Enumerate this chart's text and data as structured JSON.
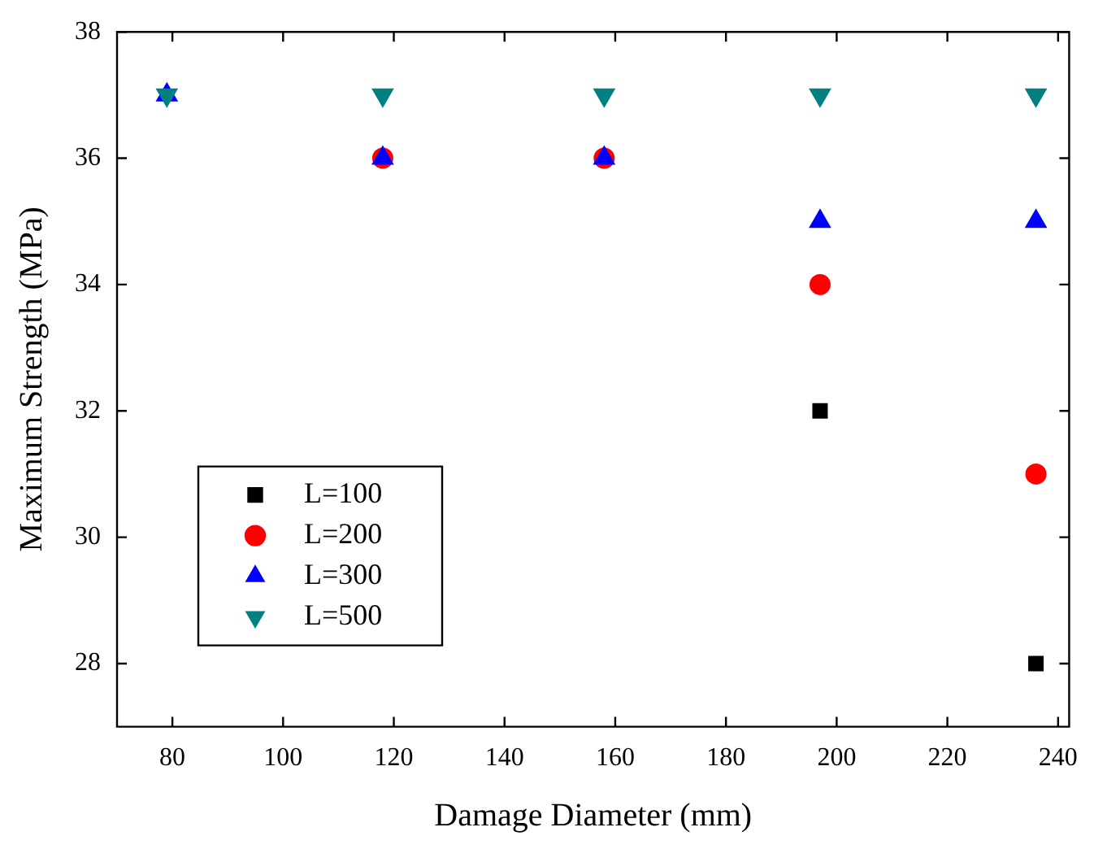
{
  "chart_data": {
    "type": "scatter",
    "xlabel": "Damage Diameter (mm)",
    "ylabel": "Maximum Strength (MPa)",
    "x": [
      79,
      118,
      158,
      197,
      236
    ],
    "series": [
      {
        "name": "L=100",
        "color": "#000000",
        "marker": "square",
        "values": [
          null,
          null,
          null,
          32,
          28
        ]
      },
      {
        "name": "L=200",
        "color": "#ff0000",
        "marker": "circle",
        "values": [
          null,
          36,
          36,
          34,
          31
        ]
      },
      {
        "name": "L=300",
        "color": "#0000ff",
        "marker": "triangle",
        "values": [
          37,
          36,
          36,
          35,
          35
        ]
      },
      {
        "name": "L=500",
        "color": "#008080",
        "marker": "triangle-down",
        "values": [
          37,
          37,
          37,
          37,
          37
        ]
      }
    ],
    "xlim": [
      70,
      242
    ],
    "xticks": [
      80,
      100,
      120,
      140,
      160,
      180,
      200,
      220,
      240
    ],
    "ylim": [
      27,
      38
    ],
    "yticks": [
      28,
      30,
      32,
      34,
      36,
      38
    ],
    "grid": false,
    "legend": "bottom left"
  }
}
